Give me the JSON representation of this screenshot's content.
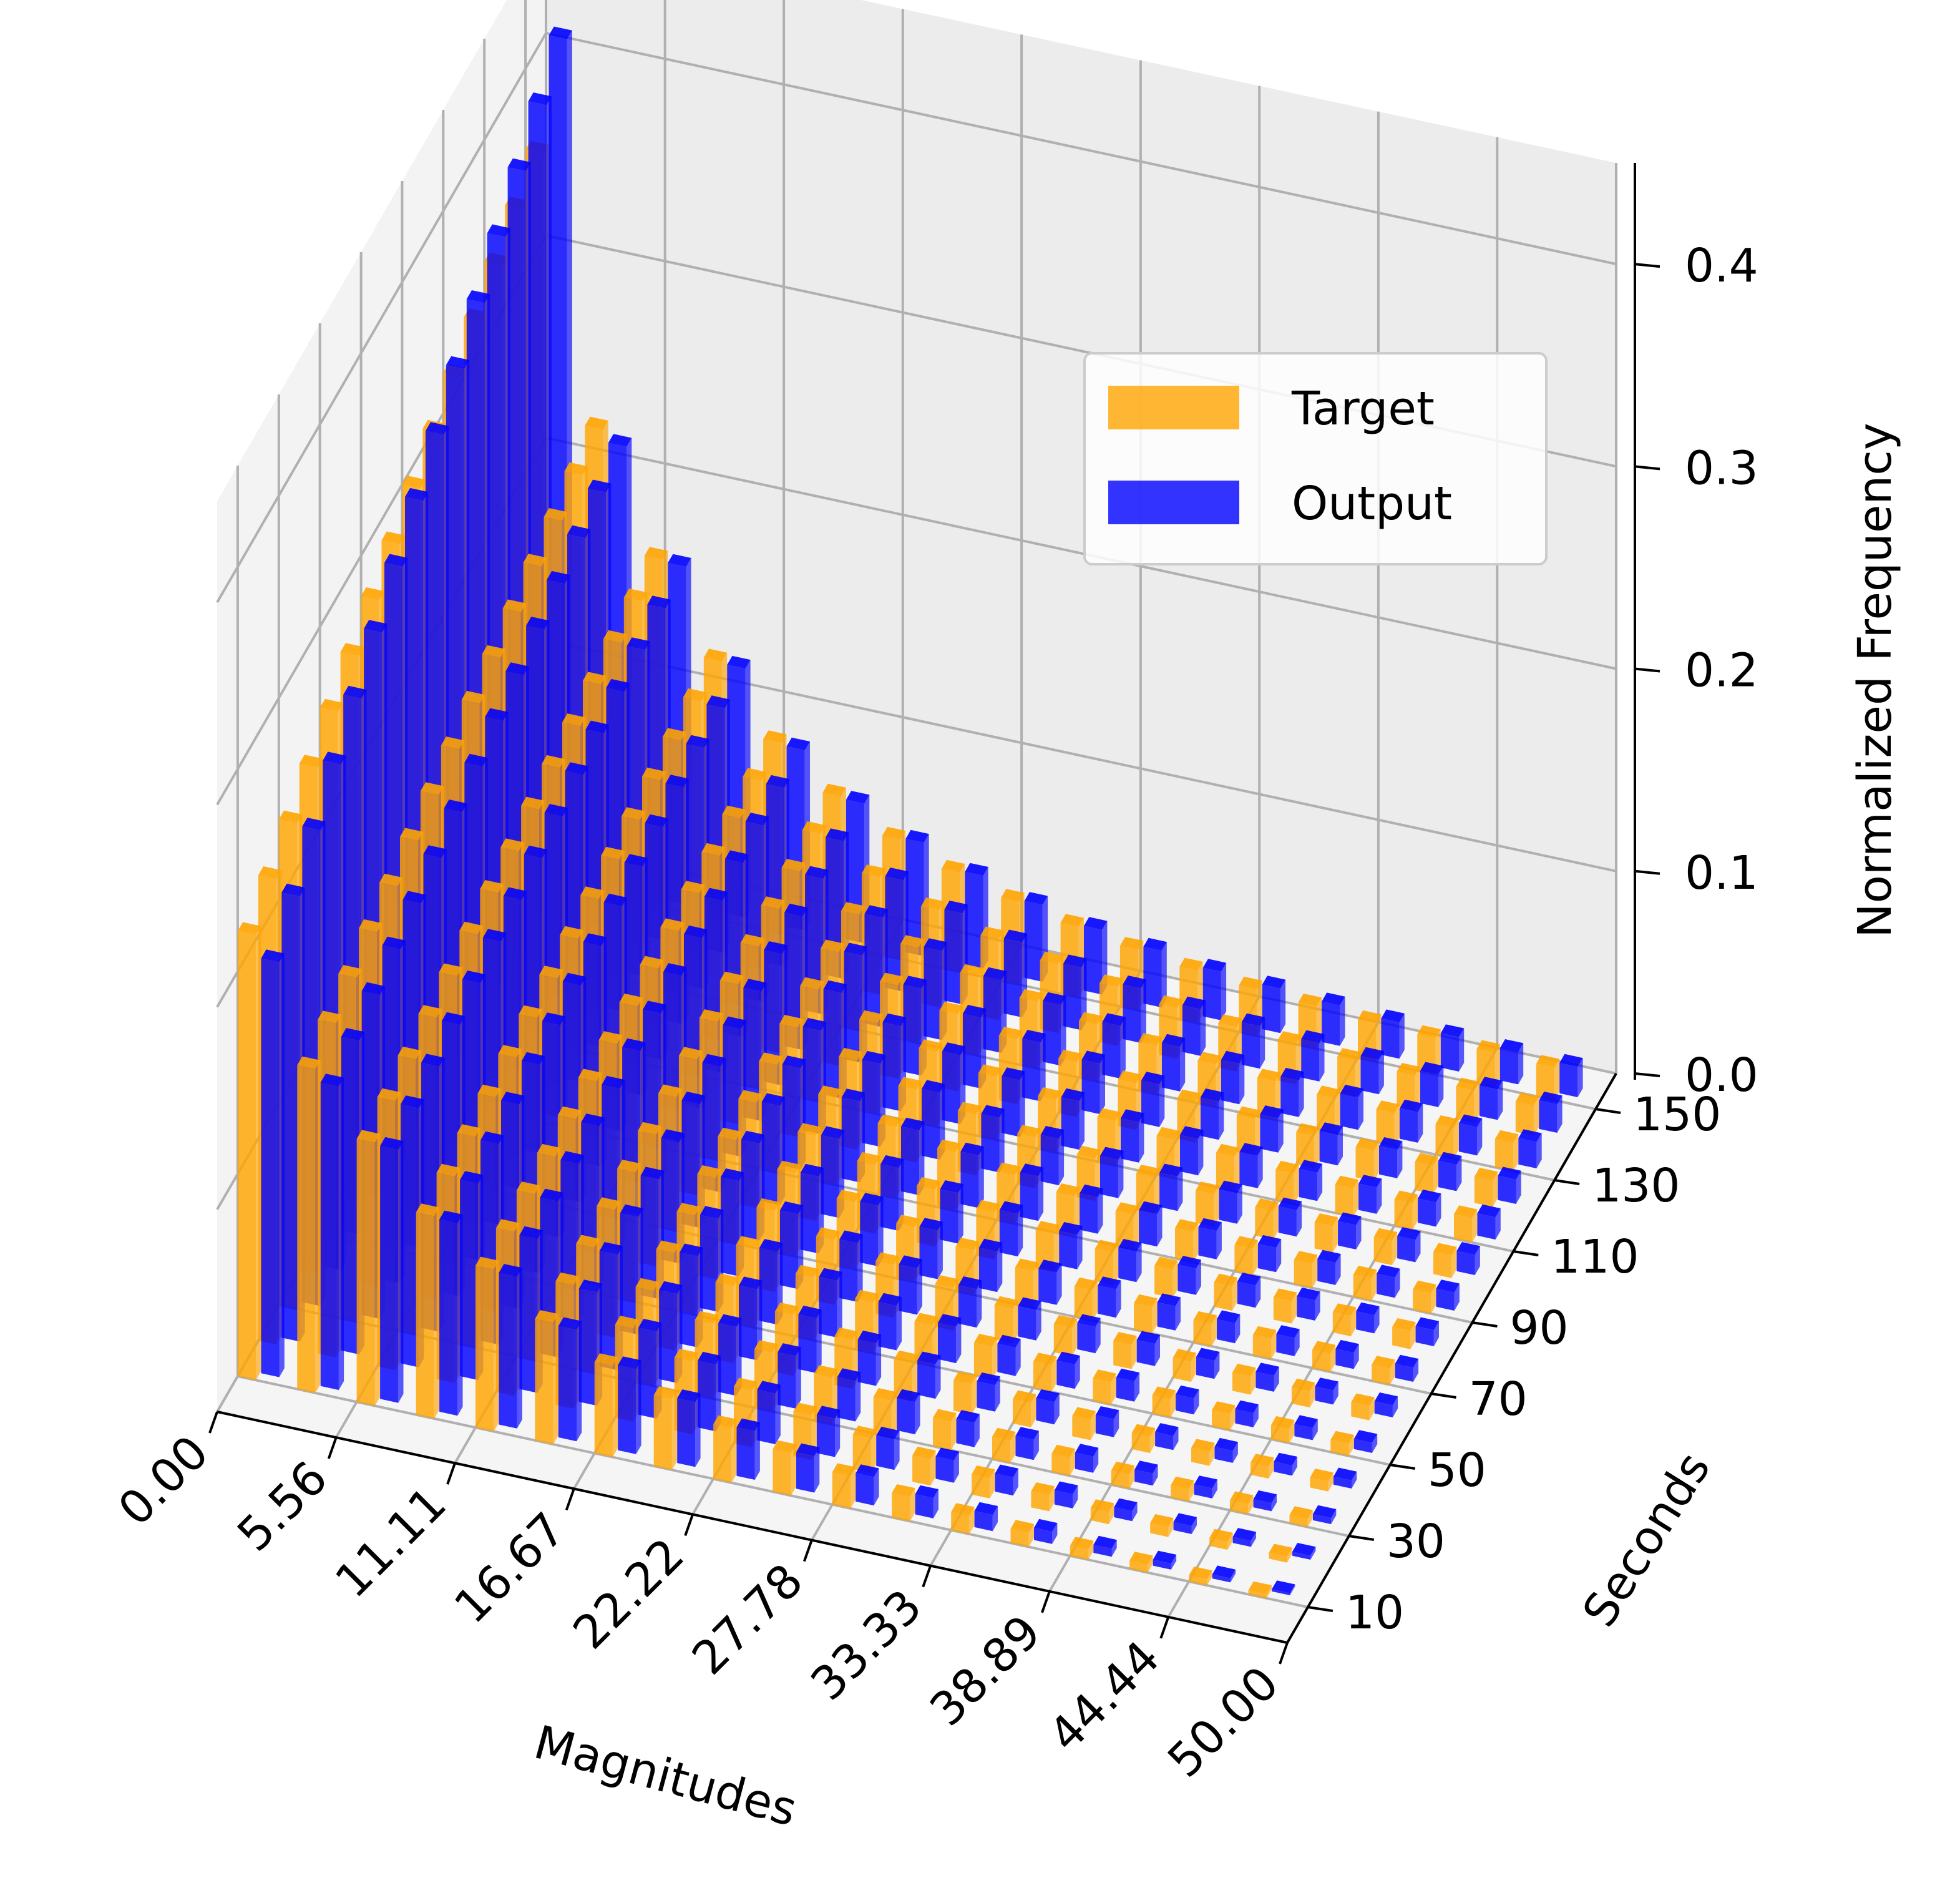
{
  "chart_data": {
    "type": "bar3d",
    "xlabel": "Magnitudes",
    "ylabel": "Seconds",
    "zlabel": "Normalized Frequency",
    "x_ticks": [
      "0.00",
      "5.56",
      "11.11",
      "16.67",
      "22.22",
      "27.78",
      "33.33",
      "38.89",
      "44.44",
      "50.00"
    ],
    "y_ticks": [
      "10",
      "30",
      "50",
      "70",
      "90",
      "110",
      "130",
      "150"
    ],
    "z_ticks": [
      "0.0",
      "0.1",
      "0.2",
      "0.3",
      "0.4"
    ],
    "xlim": [
      0,
      50
    ],
    "ylim": [
      0,
      160
    ],
    "zlim": [
      0,
      0.45
    ],
    "magnitude_bins": [
      0.0,
      2.78,
      5.56,
      8.33,
      11.11,
      13.89,
      16.67,
      19.44,
      22.22,
      25.0,
      27.78,
      30.56,
      33.33,
      36.11,
      38.89,
      41.67,
      44.44,
      47.22
    ],
    "seconds": [
      10,
      20,
      30,
      40,
      50,
      60,
      70,
      80,
      90,
      100,
      110,
      120,
      130,
      140,
      150
    ],
    "grid": true,
    "legend_position": "upper right",
    "series": [
      {
        "name": "Target",
        "color": "#FFA500",
        "values": [
          [
            0.22,
            0.23,
            0.24,
            0.25,
            0.26,
            0.27,
            0.28,
            0.29,
            0.3,
            0.31,
            0.32,
            0.33,
            0.34,
            0.35,
            0.36
          ],
          [
            0.16,
            0.165,
            0.17,
            0.175,
            0.18,
            0.185,
            0.19,
            0.195,
            0.2,
            0.205,
            0.21,
            0.215,
            0.22,
            0.225,
            0.23
          ],
          [
            0.13,
            0.133,
            0.136,
            0.139,
            0.142,
            0.145,
            0.148,
            0.151,
            0.154,
            0.157,
            0.16,
            0.163,
            0.166,
            0.169,
            0.172
          ],
          [
            0.1,
            0.102,
            0.104,
            0.106,
            0.108,
            0.11,
            0.112,
            0.114,
            0.116,
            0.118,
            0.12,
            0.122,
            0.124,
            0.126,
            0.128
          ],
          [
            0.08,
            0.081,
            0.082,
            0.083,
            0.084,
            0.085,
            0.086,
            0.087,
            0.088,
            0.089,
            0.09,
            0.091,
            0.092,
            0.093,
            0.094
          ],
          [
            0.06,
            0.061,
            0.062,
            0.063,
            0.064,
            0.065,
            0.066,
            0.067,
            0.068,
            0.069,
            0.07,
            0.071,
            0.072,
            0.073,
            0.074
          ],
          [
            0.045,
            0.046,
            0.047,
            0.048,
            0.049,
            0.05,
            0.051,
            0.052,
            0.053,
            0.054,
            0.055,
            0.056,
            0.057,
            0.058,
            0.059
          ],
          [
            0.035,
            0.036,
            0.037,
            0.038,
            0.039,
            0.04,
            0.041,
            0.042,
            0.043,
            0.044,
            0.045,
            0.046,
            0.047,
            0.048,
            0.049
          ],
          [
            0.027,
            0.028,
            0.029,
            0.03,
            0.031,
            0.032,
            0.033,
            0.034,
            0.035,
            0.036,
            0.037,
            0.038,
            0.039,
            0.04,
            0.041
          ],
          [
            0.021,
            0.022,
            0.023,
            0.024,
            0.025,
            0.026,
            0.027,
            0.028,
            0.029,
            0.03,
            0.031,
            0.032,
            0.033,
            0.034,
            0.035
          ],
          [
            0.016,
            0.017,
            0.018,
            0.019,
            0.02,
            0.021,
            0.022,
            0.023,
            0.024,
            0.025,
            0.026,
            0.027,
            0.028,
            0.029,
            0.03
          ],
          [
            0.012,
            0.013,
            0.014,
            0.015,
            0.016,
            0.017,
            0.018,
            0.019,
            0.02,
            0.021,
            0.022,
            0.023,
            0.024,
            0.025,
            0.026
          ],
          [
            0.009,
            0.01,
            0.011,
            0.012,
            0.013,
            0.014,
            0.015,
            0.016,
            0.017,
            0.018,
            0.019,
            0.02,
            0.021,
            0.022,
            0.023
          ],
          [
            0.007,
            0.008,
            0.009,
            0.01,
            0.011,
            0.012,
            0.013,
            0.014,
            0.015,
            0.016,
            0.017,
            0.018,
            0.019,
            0.02,
            0.021
          ],
          [
            0.005,
            0.006,
            0.007,
            0.008,
            0.009,
            0.01,
            0.011,
            0.012,
            0.013,
            0.014,
            0.015,
            0.016,
            0.017,
            0.018,
            0.019
          ],
          [
            0.004,
            0.005,
            0.006,
            0.007,
            0.008,
            0.009,
            0.01,
            0.011,
            0.012,
            0.013,
            0.014,
            0.015,
            0.016,
            0.017,
            0.018
          ],
          [
            0.003,
            0.004,
            0.005,
            0.006,
            0.007,
            0.008,
            0.009,
            0.01,
            0.011,
            0.012,
            0.013,
            0.014,
            0.015,
            0.016,
            0.017
          ],
          [
            0.002,
            0.003,
            0.004,
            0.005,
            0.006,
            0.007,
            0.008,
            0.009,
            0.01,
            0.011,
            0.012,
            0.013,
            0.014,
            0.015,
            0.016
          ]
        ]
      },
      {
        "name": "Output",
        "color": "#0000FF",
        "values": [
          [
            0.205,
            0.22,
            0.235,
            0.25,
            0.265,
            0.28,
            0.295,
            0.31,
            0.325,
            0.34,
            0.355,
            0.37,
            0.385,
            0.4,
            0.415
          ],
          [
            0.15,
            0.155,
            0.16,
            0.165,
            0.17,
            0.175,
            0.18,
            0.185,
            0.19,
            0.195,
            0.2,
            0.205,
            0.21,
            0.215,
            0.22
          ],
          [
            0.125,
            0.128,
            0.131,
            0.134,
            0.137,
            0.14,
            0.143,
            0.146,
            0.149,
            0.152,
            0.155,
            0.158,
            0.161,
            0.164,
            0.167
          ],
          [
            0.095,
            0.097,
            0.099,
            0.101,
            0.103,
            0.105,
            0.107,
            0.109,
            0.111,
            0.113,
            0.115,
            0.117,
            0.119,
            0.121,
            0.123
          ],
          [
            0.075,
            0.076,
            0.077,
            0.078,
            0.079,
            0.08,
            0.081,
            0.082,
            0.083,
            0.084,
            0.085,
            0.086,
            0.087,
            0.088,
            0.089
          ],
          [
            0.055,
            0.056,
            0.057,
            0.058,
            0.059,
            0.06,
            0.061,
            0.062,
            0.063,
            0.064,
            0.065,
            0.066,
            0.067,
            0.068,
            0.069
          ],
          [
            0.042,
            0.043,
            0.044,
            0.045,
            0.046,
            0.047,
            0.048,
            0.049,
            0.05,
            0.051,
            0.052,
            0.053,
            0.054,
            0.055,
            0.056
          ],
          [
            0.032,
            0.033,
            0.034,
            0.035,
            0.036,
            0.037,
            0.038,
            0.039,
            0.04,
            0.041,
            0.042,
            0.043,
            0.044,
            0.045,
            0.046
          ],
          [
            0.024,
            0.025,
            0.026,
            0.027,
            0.028,
            0.029,
            0.03,
            0.031,
            0.032,
            0.033,
            0.034,
            0.035,
            0.036,
            0.037,
            0.038
          ],
          [
            0.018,
            0.019,
            0.02,
            0.021,
            0.022,
            0.023,
            0.024,
            0.025,
            0.026,
            0.027,
            0.028,
            0.029,
            0.03,
            0.031,
            0.032
          ],
          [
            0.014,
            0.015,
            0.016,
            0.017,
            0.018,
            0.019,
            0.02,
            0.021,
            0.022,
            0.023,
            0.024,
            0.025,
            0.026,
            0.027,
            0.028
          ],
          [
            0.01,
            0.011,
            0.012,
            0.013,
            0.014,
            0.015,
            0.016,
            0.017,
            0.018,
            0.019,
            0.02,
            0.021,
            0.022,
            0.023,
            0.024
          ],
          [
            0.008,
            0.009,
            0.01,
            0.011,
            0.012,
            0.013,
            0.014,
            0.015,
            0.016,
            0.017,
            0.018,
            0.019,
            0.02,
            0.021,
            0.022
          ],
          [
            0.006,
            0.007,
            0.008,
            0.009,
            0.01,
            0.011,
            0.012,
            0.013,
            0.014,
            0.015,
            0.016,
            0.017,
            0.018,
            0.019,
            0.02
          ],
          [
            0.004,
            0.005,
            0.006,
            0.007,
            0.008,
            0.009,
            0.01,
            0.011,
            0.012,
            0.013,
            0.014,
            0.015,
            0.016,
            0.017,
            0.018
          ],
          [
            0.003,
            0.004,
            0.005,
            0.006,
            0.007,
            0.008,
            0.009,
            0.01,
            0.011,
            0.012,
            0.013,
            0.014,
            0.015,
            0.016,
            0.017
          ],
          [
            0.002,
            0.003,
            0.004,
            0.005,
            0.006,
            0.007,
            0.008,
            0.009,
            0.01,
            0.011,
            0.012,
            0.013,
            0.014,
            0.015,
            0.016
          ],
          [
            0.001,
            0.002,
            0.003,
            0.004,
            0.005,
            0.006,
            0.007,
            0.008,
            0.009,
            0.01,
            0.011,
            0.012,
            0.013,
            0.014,
            0.015
          ]
        ]
      }
    ]
  }
}
